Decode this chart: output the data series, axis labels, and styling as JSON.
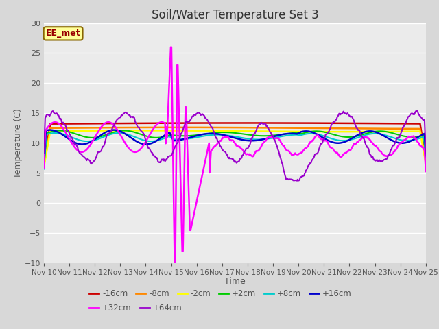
{
  "title": "Soil/Water Temperature Set 3",
  "xlabel": "Time",
  "ylabel": "Temperature (C)",
  "ylim": [
    -10,
    30
  ],
  "xlim": [
    0,
    15
  ],
  "x_tick_labels": [
    "Nov 10",
    "Nov 11",
    "Nov 12",
    "Nov 13",
    "Nov 14",
    "Nov 15",
    "Nov 16",
    "Nov 17",
    "Nov 18",
    "Nov 19",
    "Nov 20",
    "Nov 21",
    "Nov 22",
    "Nov 23",
    "Nov 24",
    "Nov 25"
  ],
  "bg_color": "#e8e8e8",
  "plot_bg_color": "#ebebeb",
  "grid_color": "#ffffff",
  "fig_bg_color": "#e0e0e0",
  "annotation_text": "EE_met",
  "annotation_bg": "#ffff99",
  "annotation_border": "#886600",
  "series": [
    {
      "label": "-16cm",
      "color": "#cc0000"
    },
    {
      "label": "-8cm",
      "color": "#ff8800"
    },
    {
      "label": "-2cm",
      "color": "#ffff00"
    },
    {
      "label": "+2cm",
      "color": "#00cc00"
    },
    {
      "label": "+8cm",
      "color": "#00cccc"
    },
    {
      "label": "+16cm",
      "color": "#0000cc"
    },
    {
      "label": "+32cm",
      "color": "#ff00ff"
    },
    {
      "label": "+64cm",
      "color": "#9900cc"
    }
  ],
  "legend_ncol_row1": 6,
  "legend_ncol_row2": 2
}
